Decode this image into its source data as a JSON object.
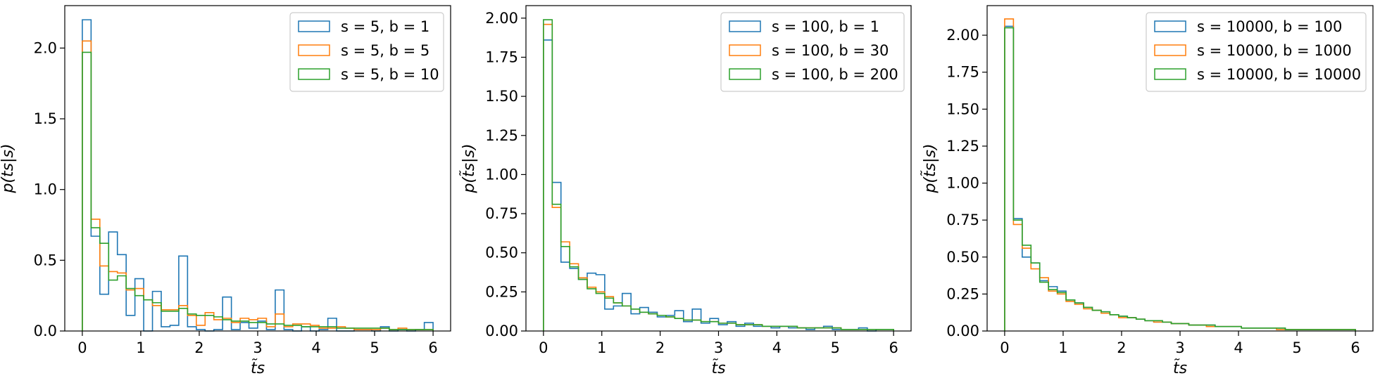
{
  "chart_data": [
    {
      "type": "histogram",
      "xlabel": "t̃s",
      "ylabel": "p(t̃s|s)",
      "xlim": [
        -0.3,
        6.3
      ],
      "ylim": [
        0,
        2.3
      ],
      "xticks": [
        "0",
        "1",
        "2",
        "3",
        "4",
        "5",
        "6"
      ],
      "yticks": [
        "0.0",
        "0.5",
        "1.0",
        "1.5",
        "2.0"
      ],
      "ytick_values": [
        0,
        0.5,
        1.0,
        1.5,
        2.0
      ],
      "legend_position": "top-right",
      "bin_edges_range": [
        0,
        6
      ],
      "bin_count": 40,
      "series": [
        {
          "name": "s = 5, b = 1",
          "color": "#1f77b4",
          "values": [
            2.2,
            0.67,
            0.26,
            0.7,
            0.54,
            0.11,
            0.37,
            0.0,
            0.28,
            0.03,
            0.04,
            0.53,
            0.03,
            0.01,
            0.0,
            0.01,
            0.24,
            0.01,
            0.06,
            0.02,
            0.07,
            0.01,
            0.29,
            0.01,
            0.0,
            0.03,
            0.0,
            0.01,
            0.09,
            0.0,
            0.0,
            0.01,
            0.01,
            0.0,
            0.03,
            0.0,
            0.01,
            0.0,
            0.01,
            0.06
          ]
        },
        {
          "name": "s = 5, b = 5",
          "color": "#ff7f0e",
          "values": [
            2.05,
            0.79,
            0.46,
            0.42,
            0.41,
            0.29,
            0.3,
            0.22,
            0.18,
            0.15,
            0.15,
            0.18,
            0.11,
            0.04,
            0.13,
            0.08,
            0.09,
            0.06,
            0.09,
            0.08,
            0.09,
            0.03,
            0.12,
            0.03,
            0.05,
            0.05,
            0.04,
            0.02,
            0.02,
            0.03,
            0.02,
            0.01,
            0.01,
            0.01,
            0.02,
            0.01,
            0.02,
            0.01,
            0.01,
            0.01
          ]
        },
        {
          "name": "s = 5, b = 10",
          "color": "#2ca02c",
          "values": [
            1.97,
            0.73,
            0.62,
            0.36,
            0.39,
            0.3,
            0.25,
            0.22,
            0.2,
            0.14,
            0.14,
            0.16,
            0.12,
            0.11,
            0.11,
            0.1,
            0.08,
            0.07,
            0.07,
            0.06,
            0.06,
            0.05,
            0.05,
            0.04,
            0.04,
            0.03,
            0.03,
            0.03,
            0.03,
            0.02,
            0.02,
            0.02,
            0.02,
            0.02,
            0.02,
            0.01,
            0.01,
            0.01,
            0.01,
            0.01
          ]
        }
      ]
    },
    {
      "type": "histogram",
      "xlabel": "t̃s",
      "ylabel": "p(t̃s|s)",
      "xlim": [
        -0.3,
        6.3
      ],
      "ylim": [
        0,
        2.08
      ],
      "xticks": [
        "0",
        "1",
        "2",
        "3",
        "4",
        "5",
        "6"
      ],
      "yticks": [
        "0.00",
        "0.25",
        "0.50",
        "0.75",
        "1.00",
        "1.25",
        "1.50",
        "1.75",
        "2.00"
      ],
      "ytick_values": [
        0,
        0.25,
        0.5,
        0.75,
        1.0,
        1.25,
        1.5,
        1.75,
        2.0
      ],
      "legend_position": "top-right",
      "bin_edges_range": [
        0,
        6
      ],
      "bin_count": 40,
      "series": [
        {
          "name": "s = 100, b = 1",
          "color": "#1f77b4",
          "values": [
            1.86,
            0.95,
            0.44,
            0.4,
            0.33,
            0.37,
            0.36,
            0.14,
            0.16,
            0.24,
            0.11,
            0.15,
            0.12,
            0.09,
            0.1,
            0.13,
            0.06,
            0.14,
            0.05,
            0.08,
            0.04,
            0.06,
            0.03,
            0.05,
            0.03,
            0.03,
            0.02,
            0.03,
            0.02,
            0.02,
            0.01,
            0.02,
            0.03,
            0.01,
            0.01,
            0.01,
            0.02,
            0.0,
            0.01,
            0.01
          ]
        },
        {
          "name": "s = 100, b = 30",
          "color": "#ff7f0e",
          "values": [
            1.96,
            0.79,
            0.57,
            0.43,
            0.34,
            0.28,
            0.25,
            0.22,
            0.18,
            0.16,
            0.14,
            0.12,
            0.11,
            0.1,
            0.09,
            0.08,
            0.07,
            0.07,
            0.06,
            0.06,
            0.05,
            0.05,
            0.04,
            0.04,
            0.04,
            0.03,
            0.03,
            0.03,
            0.03,
            0.02,
            0.02,
            0.02,
            0.02,
            0.02,
            0.01,
            0.01,
            0.01,
            0.01,
            0.01,
            0.01
          ]
        },
        {
          "name": "s = 100, b = 200",
          "color": "#2ca02c",
          "values": [
            1.99,
            0.81,
            0.54,
            0.41,
            0.33,
            0.27,
            0.24,
            0.21,
            0.18,
            0.16,
            0.14,
            0.12,
            0.11,
            0.1,
            0.09,
            0.08,
            0.07,
            0.07,
            0.06,
            0.06,
            0.05,
            0.05,
            0.04,
            0.04,
            0.04,
            0.03,
            0.03,
            0.03,
            0.03,
            0.02,
            0.02,
            0.02,
            0.02,
            0.02,
            0.01,
            0.01,
            0.01,
            0.01,
            0.01,
            0.01
          ]
        }
      ]
    },
    {
      "type": "histogram",
      "xlabel": "t̃s",
      "ylabel": "p(t̃s|s)",
      "xlim": [
        -0.3,
        6.3
      ],
      "ylim": [
        0,
        2.2
      ],
      "xticks": [
        "0",
        "1",
        "2",
        "3",
        "4",
        "5",
        "6"
      ],
      "yticks": [
        "0.00",
        "0.25",
        "0.50",
        "0.75",
        "1.00",
        "1.25",
        "1.50",
        "1.75",
        "2.00"
      ],
      "ytick_values": [
        0,
        0.25,
        0.5,
        0.75,
        1.0,
        1.25,
        1.5,
        1.75,
        2.0
      ],
      "legend_position": "top-right",
      "bin_edges_range": [
        0,
        6
      ],
      "bin_count": 40,
      "series": [
        {
          "name": "s = 10000, b = 100",
          "color": "#1f77b4",
          "values": [
            2.06,
            0.76,
            0.5,
            0.46,
            0.34,
            0.3,
            0.27,
            0.21,
            0.19,
            0.16,
            0.14,
            0.13,
            0.11,
            0.1,
            0.09,
            0.08,
            0.07,
            0.06,
            0.06,
            0.05,
            0.05,
            0.04,
            0.04,
            0.04,
            0.03,
            0.03,
            0.03,
            0.02,
            0.02,
            0.02,
            0.02,
            0.02,
            0.01,
            0.01,
            0.01,
            0.01,
            0.01,
            0.01,
            0.01,
            0.01
          ]
        },
        {
          "name": "s = 10000, b = 1000",
          "color": "#ff7f0e",
          "values": [
            2.11,
            0.72,
            0.56,
            0.42,
            0.36,
            0.27,
            0.25,
            0.2,
            0.18,
            0.15,
            0.14,
            0.12,
            0.11,
            0.09,
            0.09,
            0.08,
            0.07,
            0.06,
            0.06,
            0.05,
            0.05,
            0.04,
            0.04,
            0.03,
            0.03,
            0.03,
            0.03,
            0.02,
            0.02,
            0.02,
            0.02,
            0.01,
            0.01,
            0.01,
            0.01,
            0.01,
            0.01,
            0.01,
            0.01,
            0.01
          ]
        },
        {
          "name": "s = 10000, b = 10000",
          "color": "#2ca02c",
          "values": [
            2.05,
            0.75,
            0.58,
            0.46,
            0.33,
            0.28,
            0.26,
            0.21,
            0.19,
            0.16,
            0.14,
            0.13,
            0.11,
            0.1,
            0.09,
            0.08,
            0.07,
            0.07,
            0.06,
            0.05,
            0.05,
            0.04,
            0.04,
            0.04,
            0.03,
            0.03,
            0.03,
            0.02,
            0.02,
            0.02,
            0.02,
            0.02,
            0.01,
            0.01,
            0.01,
            0.01,
            0.01,
            0.01,
            0.01,
            0.01
          ]
        }
      ]
    }
  ]
}
